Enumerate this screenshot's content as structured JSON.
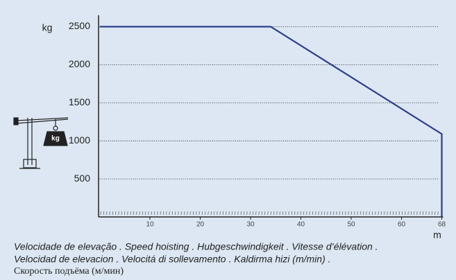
{
  "chart_data": {
    "type": "line",
    "y_unit": "kg",
    "x_unit": "m",
    "icon_label": "kg",
    "x": [
      0,
      34,
      68,
      68
    ],
    "series": [
      {
        "color": "#2e3c8e",
        "values": [
          2500,
          2500,
          1090,
          0
        ]
      }
    ],
    "xlim": [
      0,
      68
    ],
    "xticks": [
      10,
      20,
      30,
      40,
      50,
      60,
      68
    ],
    "ylim": [
      0,
      2650
    ],
    "yticks": [
      500,
      1000,
      1500,
      2000,
      2500
    ],
    "grid": true,
    "caption": [
      "Velocidade de elevação . Speed hoisting . Hubgeschwindigkeit . Vitesse d’élévation .",
      "Velocidad de elevacion . Velocitá di sollevamento . Kaldirma hizi (m/min) .",
      "Скорость подъёма (м/мин)"
    ]
  }
}
